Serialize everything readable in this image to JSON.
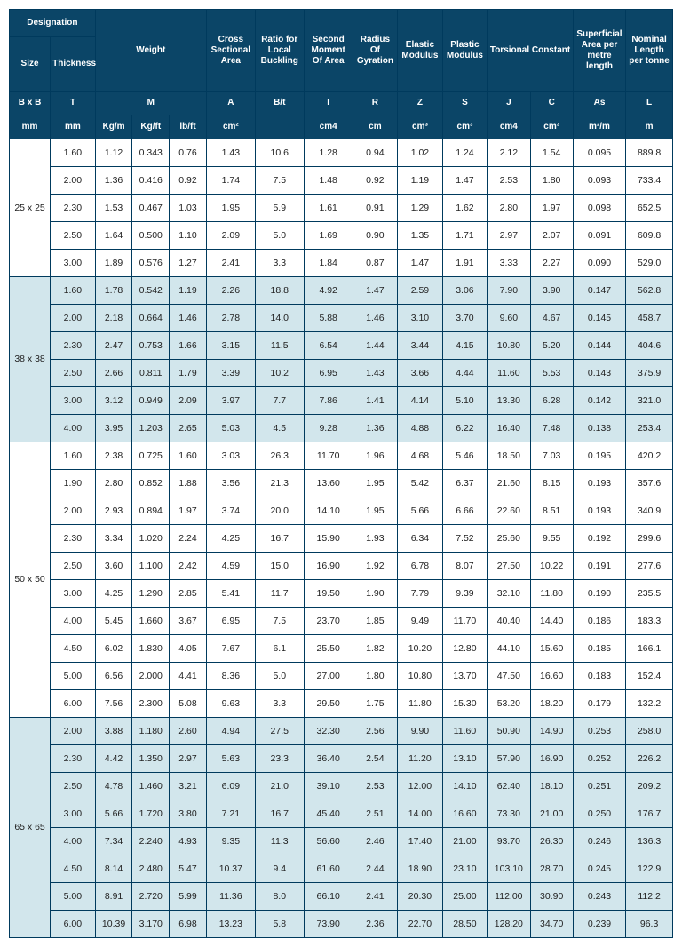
{
  "header": {
    "row1": {
      "designation": "Designation",
      "weight": "Weight",
      "cross_sectional_area": "Cross Sectional Area",
      "ratio_local_buckling": "Ratio for Local Buckling",
      "second_moment": "Second Moment Of Area",
      "radius_gyration": "Radius Of Gyration",
      "elastic_modulus": "Elastic Modulus",
      "plastic_modulus": "Plastic Modulus",
      "torsional_constant": "Torsional Constant",
      "superficial_area": "Superficial Area per metre length",
      "nominal_length": "Nominal Length per tonne"
    },
    "row1b": {
      "size": "Size",
      "thickness": "Thickness"
    },
    "row2": {
      "BxB": "B x B",
      "T": "T",
      "M": "M",
      "A": "A",
      "Bt": "B/t",
      "I": "I",
      "R": "R",
      "Z": "Z",
      "S": "S",
      "J": "J",
      "C": "C",
      "As": "As",
      "L": "L"
    },
    "row3": {
      "mm1": "mm",
      "mm2": "mm",
      "kgm": "Kg/m",
      "kgft": "Kg/ft",
      "lbft": "lb/ft",
      "cm2": "cm²",
      "blank": "",
      "cm4": "cm4",
      "cm": "cm",
      "cm3a": "cm³",
      "cm3b": "cm³",
      "cm4b": "cm4",
      "cm3c": "cm³",
      "m2m": "m²/m",
      "m": "m"
    }
  },
  "colors": {
    "header_bg": "#0b4567",
    "header_fg": "#ffffff",
    "border": "#003a5d",
    "row_alt_bg": "#d2e6ec",
    "row_bg": "#ffffff"
  },
  "groups": [
    {
      "size": "25 x 25",
      "alt": false,
      "rows": [
        [
          "1.60",
          "1.12",
          "0.343",
          "0.76",
          "1.43",
          "10.6",
          "1.28",
          "0.94",
          "1.02",
          "1.24",
          "2.12",
          "1.54",
          "0.095",
          "889.8"
        ],
        [
          "2.00",
          "1.36",
          "0.416",
          "0.92",
          "1.74",
          "7.5",
          "1.48",
          "0.92",
          "1.19",
          "1.47",
          "2.53",
          "1.80",
          "0.093",
          "733.4"
        ],
        [
          "2.30",
          "1.53",
          "0.467",
          "1.03",
          "1.95",
          "5.9",
          "1.61",
          "0.91",
          "1.29",
          "1.62",
          "2.80",
          "1.97",
          "0.098",
          "652.5"
        ],
        [
          "2.50",
          "1.64",
          "0.500",
          "1.10",
          "2.09",
          "5.0",
          "1.69",
          "0.90",
          "1.35",
          "1.71",
          "2.97",
          "2.07",
          "0.091",
          "609.8"
        ],
        [
          "3.00",
          "1.89",
          "0.576",
          "1.27",
          "2.41",
          "3.3",
          "1.84",
          "0.87",
          "1.47",
          "1.91",
          "3.33",
          "2.27",
          "0.090",
          "529.0"
        ]
      ]
    },
    {
      "size": "38 x 38",
      "alt": true,
      "rows": [
        [
          "1.60",
          "1.78",
          "0.542",
          "1.19",
          "2.26",
          "18.8",
          "4.92",
          "1.47",
          "2.59",
          "3.06",
          "7.90",
          "3.90",
          "0.147",
          "562.8"
        ],
        [
          "2.00",
          "2.18",
          "0.664",
          "1.46",
          "2.78",
          "14.0",
          "5.88",
          "1.46",
          "3.10",
          "3.70",
          "9.60",
          "4.67",
          "0.145",
          "458.7"
        ],
        [
          "2.30",
          "2.47",
          "0.753",
          "1.66",
          "3.15",
          "11.5",
          "6.54",
          "1.44",
          "3.44",
          "4.15",
          "10.80",
          "5.20",
          "0.144",
          "404.6"
        ],
        [
          "2.50",
          "2.66",
          "0.811",
          "1.79",
          "3.39",
          "10.2",
          "6.95",
          "1.43",
          "3.66",
          "4.44",
          "11.60",
          "5.53",
          "0.143",
          "375.9"
        ],
        [
          "3.00",
          "3.12",
          "0.949",
          "2.09",
          "3.97",
          "7.7",
          "7.86",
          "1.41",
          "4.14",
          "5.10",
          "13.30",
          "6.28",
          "0.142",
          "321.0"
        ],
        [
          "4.00",
          "3.95",
          "1.203",
          "2.65",
          "5.03",
          "4.5",
          "9.28",
          "1.36",
          "4.88",
          "6.22",
          "16.40",
          "7.48",
          "0.138",
          "253.4"
        ]
      ]
    },
    {
      "size": "50 x 50",
      "alt": false,
      "rows": [
        [
          "1.60",
          "2.38",
          "0.725",
          "1.60",
          "3.03",
          "26.3",
          "11.70",
          "1.96",
          "4.68",
          "5.46",
          "18.50",
          "7.03",
          "0.195",
          "420.2"
        ],
        [
          "1.90",
          "2.80",
          "0.852",
          "1.88",
          "3.56",
          "21.3",
          "13.60",
          "1.95",
          "5.42",
          "6.37",
          "21.60",
          "8.15",
          "0.193",
          "357.6"
        ],
        [
          "2.00",
          "2.93",
          "0.894",
          "1.97",
          "3.74",
          "20.0",
          "14.10",
          "1.95",
          "5.66",
          "6.66",
          "22.60",
          "8.51",
          "0.193",
          "340.9"
        ],
        [
          "2.30",
          "3.34",
          "1.020",
          "2.24",
          "4.25",
          "16.7",
          "15.90",
          "1.93",
          "6.34",
          "7.52",
          "25.60",
          "9.55",
          "0.192",
          "299.6"
        ],
        [
          "2.50",
          "3.60",
          "1.100",
          "2.42",
          "4.59",
          "15.0",
          "16.90",
          "1.92",
          "6.78",
          "8.07",
          "27.50",
          "10.22",
          "0.191",
          "277.6"
        ],
        [
          "3.00",
          "4.25",
          "1.290",
          "2.85",
          "5.41",
          "11.7",
          "19.50",
          "1.90",
          "7.79",
          "9.39",
          "32.10",
          "11.80",
          "0.190",
          "235.5"
        ],
        [
          "4.00",
          "5.45",
          "1.660",
          "3.67",
          "6.95",
          "7.5",
          "23.70",
          "1.85",
          "9.49",
          "11.70",
          "40.40",
          "14.40",
          "0.186",
          "183.3"
        ],
        [
          "4.50",
          "6.02",
          "1.830",
          "4.05",
          "7.67",
          "6.1",
          "25.50",
          "1.82",
          "10.20",
          "12.80",
          "44.10",
          "15.60",
          "0.185",
          "166.1"
        ],
        [
          "5.00",
          "6.56",
          "2.000",
          "4.41",
          "8.36",
          "5.0",
          "27.00",
          "1.80",
          "10.80",
          "13.70",
          "47.50",
          "16.60",
          "0.183",
          "152.4"
        ],
        [
          "6.00",
          "7.56",
          "2.300",
          "5.08",
          "9.63",
          "3.3",
          "29.50",
          "1.75",
          "11.80",
          "15.30",
          "53.20",
          "18.20",
          "0.179",
          "132.2"
        ]
      ]
    },
    {
      "size": "65 x 65",
      "alt": true,
      "rows": [
        [
          "2.00",
          "3.88",
          "1.180",
          "2.60",
          "4.94",
          "27.5",
          "32.30",
          "2.56",
          "9.90",
          "11.60",
          "50.90",
          "14.90",
          "0.253",
          "258.0"
        ],
        [
          "2.30",
          "4.42",
          "1.350",
          "2.97",
          "5.63",
          "23.3",
          "36.40",
          "2.54",
          "11.20",
          "13.10",
          "57.90",
          "16.90",
          "0.252",
          "226.2"
        ],
        [
          "2.50",
          "4.78",
          "1.460",
          "3.21",
          "6.09",
          "21.0",
          "39.10",
          "2.53",
          "12.00",
          "14.10",
          "62.40",
          "18.10",
          "0.251",
          "209.2"
        ],
        [
          "3.00",
          "5.66",
          "1.720",
          "3.80",
          "7.21",
          "16.7",
          "45.40",
          "2.51",
          "14.00",
          "16.60",
          "73.30",
          "21.00",
          "0.250",
          "176.7"
        ],
        [
          "4.00",
          "7.34",
          "2.240",
          "4.93",
          "9.35",
          "11.3",
          "56.60",
          "2.46",
          "17.40",
          "21.00",
          "93.70",
          "26.30",
          "0.246",
          "136.3"
        ],
        [
          "4.50",
          "8.14",
          "2.480",
          "5.47",
          "10.37",
          "9.4",
          "61.60",
          "2.44",
          "18.90",
          "23.10",
          "103.10",
          "28.70",
          "0.245",
          "122.9"
        ],
        [
          "5.00",
          "8.91",
          "2.720",
          "5.99",
          "11.36",
          "8.0",
          "66.10",
          "2.41",
          "20.30",
          "25.00",
          "112.00",
          "30.90",
          "0.243",
          "112.2"
        ],
        [
          "6.00",
          "10.39",
          "3.170",
          "6.98",
          "13.23",
          "5.8",
          "73.90",
          "2.36",
          "22.70",
          "28.50",
          "128.20",
          "34.70",
          "0.239",
          "96.3"
        ]
      ]
    }
  ]
}
